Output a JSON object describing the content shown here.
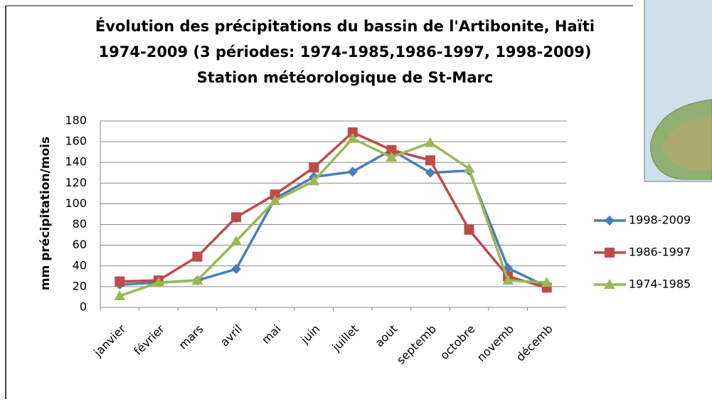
{
  "chart_data": {
    "type": "line",
    "title": [
      "Évolution des précipitations du bassin de l'Artibonite, Haïti",
      "1974-2009 (3 périodes: 1974-1985,1986-1997, 1998-2009)",
      "Station météorologique de St-Marc"
    ],
    "y_label": "mm précipitation/mois",
    "categories": [
      "janvier",
      "février",
      "mars",
      "avril",
      "mai",
      "juin",
      "juillet",
      "aout",
      "septemb",
      "octobre",
      "novemb",
      "décemb"
    ],
    "series": [
      {
        "name": "1998-2009",
        "color": "#4a7ebb",
        "marker": "diamond",
        "values": [
          22,
          24,
          26,
          37,
          105,
          126,
          131,
          152,
          130,
          132,
          38,
          20
        ]
      },
      {
        "name": "1986-1997",
        "color": "#be4b48",
        "marker": "square",
        "values": [
          25,
          26,
          49,
          87,
          109,
          135,
          169,
          152,
          142,
          75,
          30,
          19
        ]
      },
      {
        "name": "1974-1985",
        "color": "#98b954",
        "marker": "triangle",
        "values": [
          11,
          24,
          26,
          64,
          103,
          122,
          163,
          145,
          159,
          134,
          26,
          24
        ]
      }
    ],
    "ylim": [
      0,
      180
    ],
    "yticks": [
      0,
      20,
      40,
      60,
      80,
      100,
      120,
      140,
      160,
      180
    ],
    "grid": true,
    "legend": "right"
  }
}
